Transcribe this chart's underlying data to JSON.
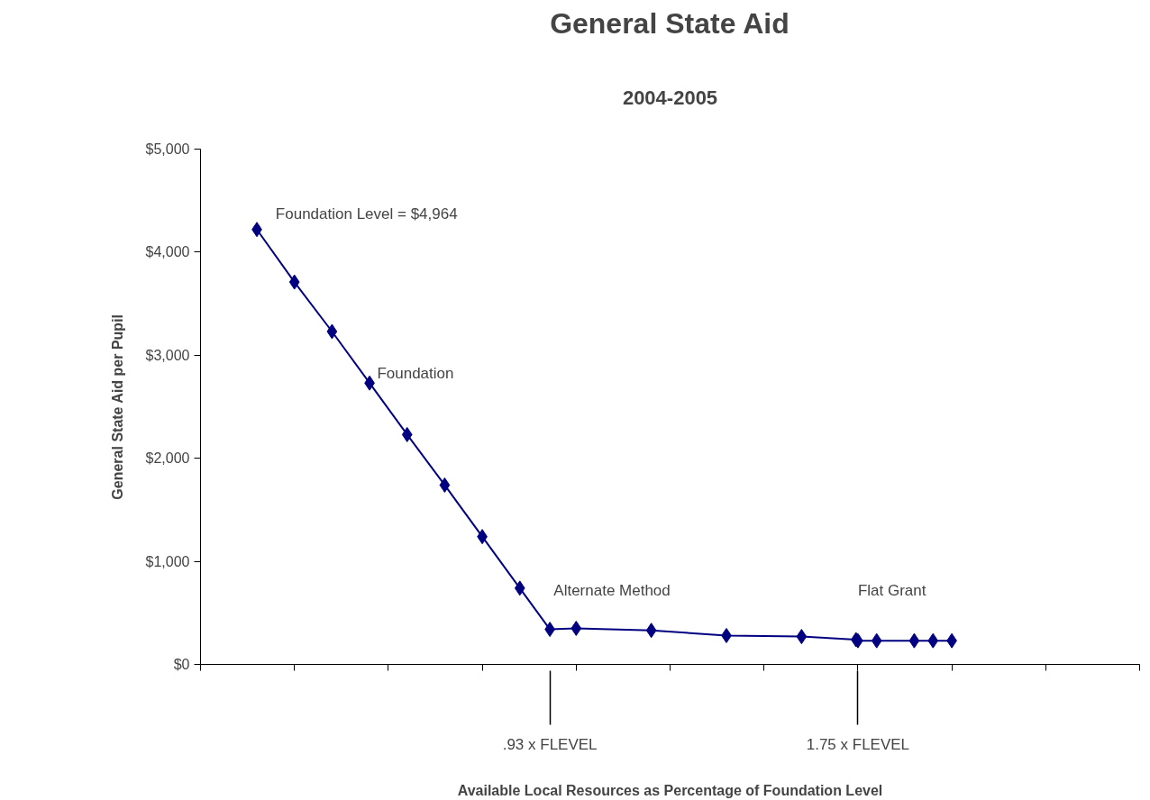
{
  "chart_data": {
    "type": "line",
    "title": "General State Aid",
    "subtitle": "2004-2005",
    "xlabel": "Available Local Resources as Percentage of Foundation Level",
    "ylabel": "General State Aid per Pupil",
    "x": [
      0.15,
      0.25,
      0.35,
      0.45,
      0.55,
      0.65,
      0.75,
      0.85,
      0.93,
      1.0,
      1.2,
      1.4,
      1.6,
      1.745,
      1.75,
      1.8,
      1.9,
      1.95,
      2.0
    ],
    "series": [
      {
        "color": "#000080",
        "values": [
          4220,
          3710,
          3230,
          2730,
          2230,
          1740,
          1240,
          740,
          340,
          350,
          330,
          280,
          270,
          240,
          230,
          230,
          230,
          230,
          230
        ]
      }
    ],
    "xlim": [
      0,
      2.5
    ],
    "xticks": [
      {
        "value": 0,
        "label": null
      },
      {
        "value": 0.25,
        "label": null
      },
      {
        "value": 0.5,
        "label": null
      },
      {
        "value": 0.75,
        "label": null
      },
      {
        "value": 0.93,
        "label": ".93 x FLEVEL"
      },
      {
        "value": 1.0,
        "label": null
      },
      {
        "value": 1.25,
        "label": null
      },
      {
        "value": 1.5,
        "label": null
      },
      {
        "value": 1.75,
        "label": null
      },
      {
        "value": 1.75,
        "label": "1.75 x FLEVEL"
      },
      {
        "value": 2.0,
        "label": null
      },
      {
        "value": 2.25,
        "label": null
      },
      {
        "value": 2.5,
        "label": null
      }
    ],
    "ylim": [
      0,
      5000
    ],
    "yticks": [
      {
        "value": 0,
        "label": "$0"
      },
      {
        "value": 1000,
        "label": "$1,000"
      },
      {
        "value": 2000,
        "label": "$2,000"
      },
      {
        "value": 3000,
        "label": "$3,000"
      },
      {
        "value": 4000,
        "label": "$4,000"
      },
      {
        "value": 5000,
        "label": "$5,000"
      }
    ],
    "grid": false,
    "marker": "diamond",
    "line_style": "solid",
    "annotations": [
      "Foundation Level = $4,964",
      "Foundation",
      "Alternate Method",
      "Flat Grant"
    ]
  }
}
